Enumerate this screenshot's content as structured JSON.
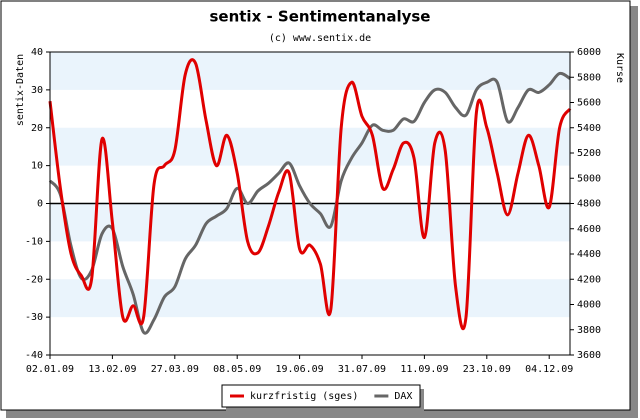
{
  "chart_data": {
    "type": "line",
    "title": "sentix - Sentimentanalyse",
    "subtitle": "(c) www.sentix.de",
    "y_label": "sentix-Daten",
    "y2_label": "Kurse",
    "categories": [
      "02.01.09",
      null,
      null,
      null,
      null,
      null,
      "13.02.09",
      null,
      null,
      null,
      null,
      null,
      "27.03.09",
      null,
      null,
      null,
      null,
      null,
      "08.05.09",
      null,
      null,
      null,
      null,
      null,
      "19.06.09",
      null,
      null,
      null,
      null,
      null,
      "31.07.09",
      null,
      null,
      null,
      null,
      null,
      "11.09.09",
      null,
      null,
      null,
      null,
      null,
      "23.10.09",
      null,
      null,
      null,
      null,
      null,
      "04.12.09",
      null,
      null
    ],
    "ylim": [
      -40,
      40
    ],
    "yticks": [
      -40,
      -30,
      -20,
      -10,
      0,
      10,
      20,
      30,
      40
    ],
    "y2lim": [
      3600,
      6000
    ],
    "y2ticks": [
      3600,
      3800,
      4000,
      4200,
      4400,
      4600,
      4800,
      5000,
      5200,
      5400,
      5600,
      5800,
      6000
    ],
    "legend": "bottom",
    "series": [
      {
        "name": "kurzfristig (sges)",
        "color": "#e00000",
        "axis": "y",
        "values": [
          27,
          4,
          -13,
          -19,
          -20,
          17,
          -5,
          -30,
          -27,
          -30,
          5,
          10,
          14,
          34,
          37,
          22,
          10,
          18,
          8,
          -10,
          -13,
          -6,
          3,
          8,
          -12,
          -11,
          -16,
          -28,
          20,
          32,
          23,
          18,
          4,
          9,
          16,
          12,
          -9,
          16,
          14,
          -22,
          -30,
          24,
          20,
          8,
          -3,
          8,
          18,
          10,
          -1,
          20,
          25
        ]
      },
      {
        "name": "DAX",
        "color": "#666666",
        "axis": "y2",
        "values": [
          4980,
          4870,
          4470,
          4210,
          4270,
          4560,
          4600,
          4300,
          4080,
          3780,
          3880,
          4060,
          4140,
          4360,
          4470,
          4640,
          4700,
          4760,
          4920,
          4800,
          4900,
          4960,
          5040,
          5120,
          4940,
          4800,
          4720,
          4620,
          4980,
          5160,
          5280,
          5420,
          5380,
          5380,
          5470,
          5450,
          5600,
          5700,
          5680,
          5560,
          5500,
          5700,
          5760,
          5760,
          5450,
          5560,
          5700,
          5680,
          5740,
          5830,
          5790
        ]
      }
    ]
  }
}
